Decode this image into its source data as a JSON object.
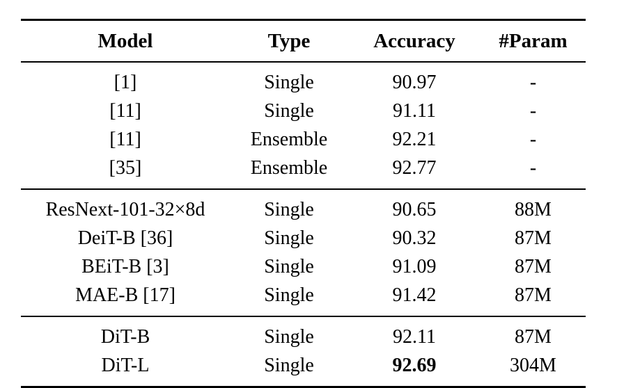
{
  "page": {
    "background_color": "#ffffff",
    "text_color": "#000000"
  },
  "table": {
    "columns": [
      {
        "id": "model",
        "label": "Model"
      },
      {
        "id": "type",
        "label": "Type"
      },
      {
        "id": "accuracy",
        "label": "Accuracy"
      },
      {
        "id": "param",
        "label": "#Param"
      }
    ],
    "groups": [
      {
        "name": "referenced-methods",
        "rows": [
          {
            "model": "[1]",
            "type": "Single",
            "accuracy": "90.97",
            "param": "-",
            "bold_accuracy": false
          },
          {
            "model": "[11]",
            "type": "Single",
            "accuracy": "91.11",
            "param": "-",
            "bold_accuracy": false
          },
          {
            "model": "[11]",
            "type": "Ensemble",
            "accuracy": "92.21",
            "param": "-",
            "bold_accuracy": false
          },
          {
            "model": "[35]",
            "type": "Ensemble",
            "accuracy": "92.77",
            "param": "-",
            "bold_accuracy": false
          }
        ]
      },
      {
        "name": "baseline-models",
        "rows": [
          {
            "model": "ResNext-101-32×8d",
            "type": "Single",
            "accuracy": "90.65",
            "param": "88M",
            "bold_accuracy": false
          },
          {
            "model": "DeiT-B [36]",
            "type": "Single",
            "accuracy": "90.32",
            "param": "87M",
            "bold_accuracy": false
          },
          {
            "model": "BEiT-B [3]",
            "type": "Single",
            "accuracy": "91.09",
            "param": "87M",
            "bold_accuracy": false
          },
          {
            "model": "MAE-B [17]",
            "type": "Single",
            "accuracy": "91.42",
            "param": "87M",
            "bold_accuracy": false
          }
        ]
      },
      {
        "name": "dit-models",
        "rows": [
          {
            "model": "DiT-B",
            "type": "Single",
            "accuracy": "92.11",
            "param": "87M",
            "bold_accuracy": false
          },
          {
            "model": "DiT-L",
            "type": "Single",
            "accuracy": "92.69",
            "param": "304M",
            "bold_accuracy": true
          }
        ]
      }
    ]
  },
  "chart_data": {
    "type": "table",
    "columns": [
      "Model",
      "Type",
      "Accuracy",
      "#Param"
    ],
    "rows": [
      [
        "[1]",
        "Single",
        "90.97",
        "-"
      ],
      [
        "[11]",
        "Single",
        "91.11",
        "-"
      ],
      [
        "[11]",
        "Ensemble",
        "92.21",
        "-"
      ],
      [
        "[35]",
        "Ensemble",
        "92.77",
        "-"
      ],
      [
        "ResNext-101-32×8d",
        "Single",
        "90.65",
        "88M"
      ],
      [
        "DeiT-B [36]",
        "Single",
        "90.32",
        "87M"
      ],
      [
        "BEiT-B [3]",
        "Single",
        "91.09",
        "87M"
      ],
      [
        "MAE-B [17]",
        "Single",
        "91.42",
        "87M"
      ],
      [
        "DiT-B",
        "Single",
        "92.11",
        "87M"
      ],
      [
        "DiT-L",
        "Single",
        "92.69",
        "304M"
      ]
    ]
  }
}
